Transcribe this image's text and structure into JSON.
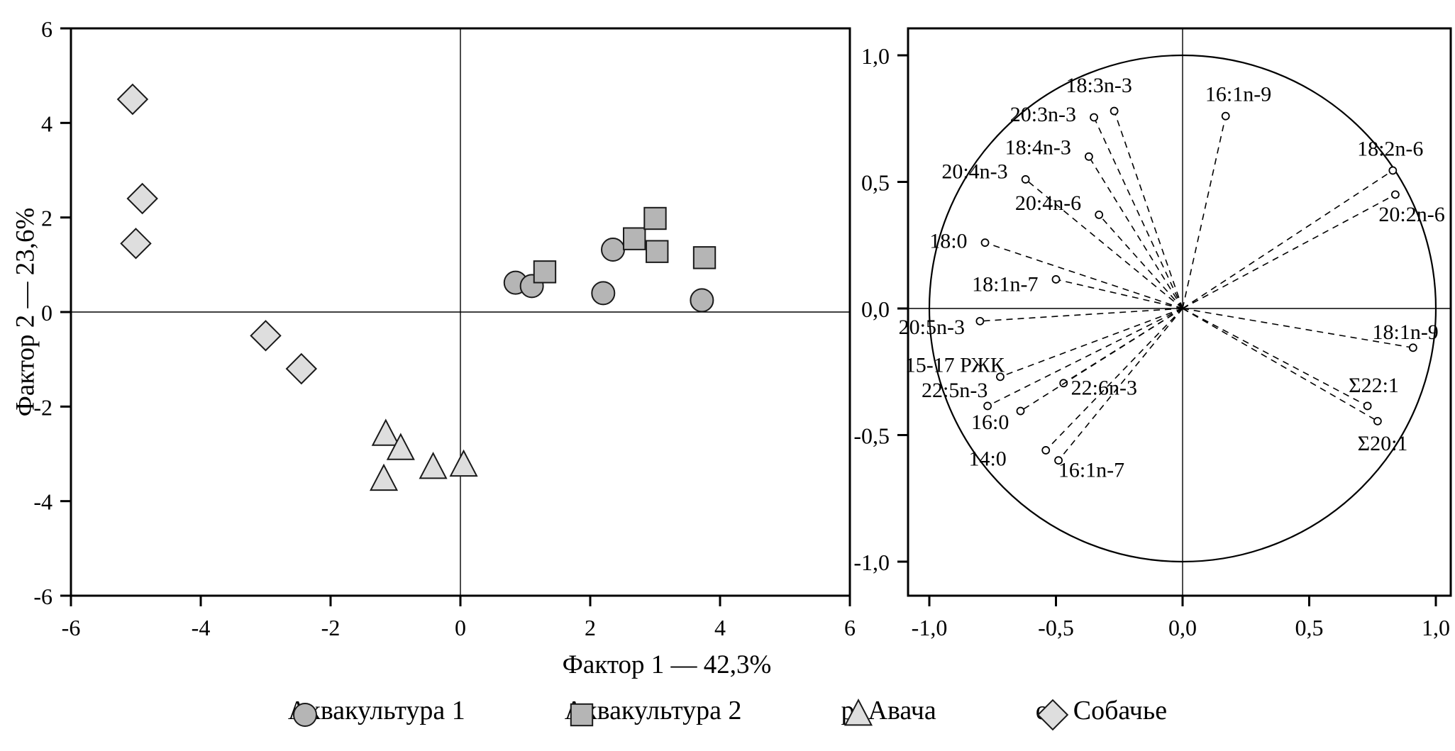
{
  "chart_data": [
    {
      "id": "factor-scores",
      "type": "scatter",
      "title": "",
      "xlabel": "Фактор 1 — 42,3%",
      "ylabel": "Фактор 2 — 23,6%",
      "xlim": [
        -6,
        6
      ],
      "ylim": [
        -6,
        6
      ],
      "xticks": [
        -6,
        -4,
        -2,
        0,
        2,
        4,
        6
      ],
      "yticks": [
        -6,
        -4,
        -2,
        0,
        2,
        4,
        6
      ],
      "xtick_labels": [
        "-6",
        "-4",
        "-2",
        "0",
        "2",
        "4",
        "6"
      ],
      "ytick_labels": [
        "-6",
        "-4",
        "-2",
        "0",
        "2",
        "4",
        "6"
      ],
      "grid": false,
      "zero_lines": true,
      "series": [
        {
          "name": "Аквакультура 1",
          "marker": "circle",
          "fill": "#b5b5b5",
          "stroke": "#1a1a1a",
          "points": [
            [
              0.85,
              0.62
            ],
            [
              1.1,
              0.55
            ],
            [
              2.35,
              1.32
            ],
            [
              2.2,
              0.4
            ],
            [
              3.72,
              0.25
            ]
          ]
        },
        {
          "name": "Аквакультура 2",
          "marker": "square",
          "fill": "#b5b5b5",
          "stroke": "#1a1a1a",
          "points": [
            [
              1.3,
              0.85
            ],
            [
              2.68,
              1.55
            ],
            [
              3.0,
              1.98
            ],
            [
              3.03,
              1.28
            ],
            [
              3.76,
              1.15
            ]
          ]
        },
        {
          "name": "р. Авача",
          "marker": "triangle",
          "fill": "#dedede",
          "stroke": "#1a1a1a",
          "points": [
            [
              -1.15,
              -2.6
            ],
            [
              -0.92,
              -2.9
            ],
            [
              -1.18,
              -3.55
            ],
            [
              -0.42,
              -3.3
            ],
            [
              0.05,
              -3.25
            ]
          ]
        },
        {
          "name": "оз. Собачье",
          "marker": "diamond",
          "fill": "#dedede",
          "stroke": "#1a1a1a",
          "points": [
            [
              -5.05,
              4.5
            ],
            [
              -4.9,
              2.4
            ],
            [
              -5.0,
              1.45
            ],
            [
              -3.0,
              -0.5
            ],
            [
              -2.45,
              -1.2
            ]
          ]
        }
      ]
    },
    {
      "id": "factor-loadings",
      "type": "scatter",
      "title": "",
      "xlim": [
        -1.07,
        1.07
      ],
      "ylim": [
        -1.12,
        1.12
      ],
      "xticks": [
        -1.0,
        -0.5,
        0.0,
        0.5,
        1.0
      ],
      "yticks": [
        -1.0,
        -0.5,
        0.0,
        0.5,
        1.0
      ],
      "xtick_labels": [
        "-1,0",
        "-0,5",
        "0,0",
        "0,5",
        "1,0"
      ],
      "ytick_labels": [
        "-1,0",
        "-0,5",
        "0,0",
        "0,5",
        "1,0"
      ],
      "unit_circle": true,
      "zero_lines": true,
      "loadings": [
        {
          "name": "18:3n-3",
          "x": -0.27,
          "y": 0.78,
          "label_x": -0.33,
          "label_y": 0.885,
          "anchor": "middle"
        },
        {
          "name": "20:3n-3",
          "x": -0.35,
          "y": 0.755,
          "label_x": -0.42,
          "label_y": 0.77,
          "anchor": "end"
        },
        {
          "name": "16:1n-9",
          "x": 0.17,
          "y": 0.76,
          "label_x": 0.22,
          "label_y": 0.85,
          "anchor": "middle"
        },
        {
          "name": "18:4n-3",
          "x": -0.37,
          "y": 0.6,
          "label_x": -0.44,
          "label_y": 0.64,
          "anchor": "end"
        },
        {
          "name": "20:4n-3",
          "x": -0.62,
          "y": 0.51,
          "label_x": -0.69,
          "label_y": 0.545,
          "anchor": "end"
        },
        {
          "name": "20:4n-6",
          "x": -0.33,
          "y": 0.37,
          "label_x": -0.4,
          "label_y": 0.42,
          "anchor": "end"
        },
        {
          "name": "18:2n-6",
          "x": 0.83,
          "y": 0.545,
          "label_x": 0.82,
          "label_y": 0.635,
          "anchor": "middle"
        },
        {
          "name": "20:2n-6",
          "x": 0.84,
          "y": 0.45,
          "label_x": 0.905,
          "label_y": 0.375,
          "anchor": "middle"
        },
        {
          "name": "18:0",
          "x": -0.78,
          "y": 0.26,
          "label_x": -0.85,
          "label_y": 0.27,
          "anchor": "end"
        },
        {
          "name": "18:1n-7",
          "x": -0.5,
          "y": 0.115,
          "label_x": -0.57,
          "label_y": 0.1,
          "anchor": "end"
        },
        {
          "name": "20:5n-3",
          "x": -0.8,
          "y": -0.05,
          "label_x": -0.86,
          "label_y": -0.07,
          "anchor": "end"
        },
        {
          "name": "18:1n-9",
          "x": 0.91,
          "y": -0.155,
          "label_x": 0.88,
          "label_y": -0.09,
          "anchor": "middle"
        },
        {
          "name": "15-17 РЖК",
          "x": -0.72,
          "y": -0.27,
          "label_x": -0.9,
          "label_y": -0.22,
          "anchor": "middle"
        },
        {
          "name": "22:5n-3",
          "x": -0.77,
          "y": -0.385,
          "label_x": -0.9,
          "label_y": -0.32,
          "anchor": "middle"
        },
        {
          "name": "22:6n-3",
          "x": -0.47,
          "y": -0.295,
          "label_x": -0.31,
          "label_y": -0.31,
          "anchor": "middle"
        },
        {
          "name": "Σ22:1",
          "x": 0.73,
          "y": -0.385,
          "label_x": 0.755,
          "label_y": -0.3,
          "anchor": "middle"
        },
        {
          "name": "16:0",
          "x": -0.64,
          "y": -0.405,
          "label_x": -0.76,
          "label_y": -0.445,
          "anchor": "middle"
        },
        {
          "name": "Σ20:1",
          "x": 0.77,
          "y": -0.445,
          "label_x": 0.79,
          "label_y": -0.53,
          "anchor": "middle"
        },
        {
          "name": "14:0",
          "x": -0.54,
          "y": -0.56,
          "label_x": -0.77,
          "label_y": -0.59,
          "anchor": "middle"
        },
        {
          "name": "16:1n-7",
          "x": -0.49,
          "y": -0.6,
          "label_x": -0.36,
          "label_y": -0.635,
          "anchor": "middle"
        }
      ]
    }
  ],
  "legend": {
    "items": [
      {
        "label": "Аквакультура 1",
        "marker": "circle",
        "fill": "#b5b5b5"
      },
      {
        "label": "Аквакультура 2",
        "marker": "square",
        "fill": "#b5b5b5"
      },
      {
        "label": "р. Авача",
        "marker": "triangle",
        "fill": "#dedede"
      },
      {
        "label": "оз. Собачье",
        "marker": "diamond",
        "fill": "#dedede"
      }
    ]
  },
  "colors": {
    "frame": "#000000",
    "marker_stroke": "#1a1a1a",
    "background": "#ffffff"
  }
}
